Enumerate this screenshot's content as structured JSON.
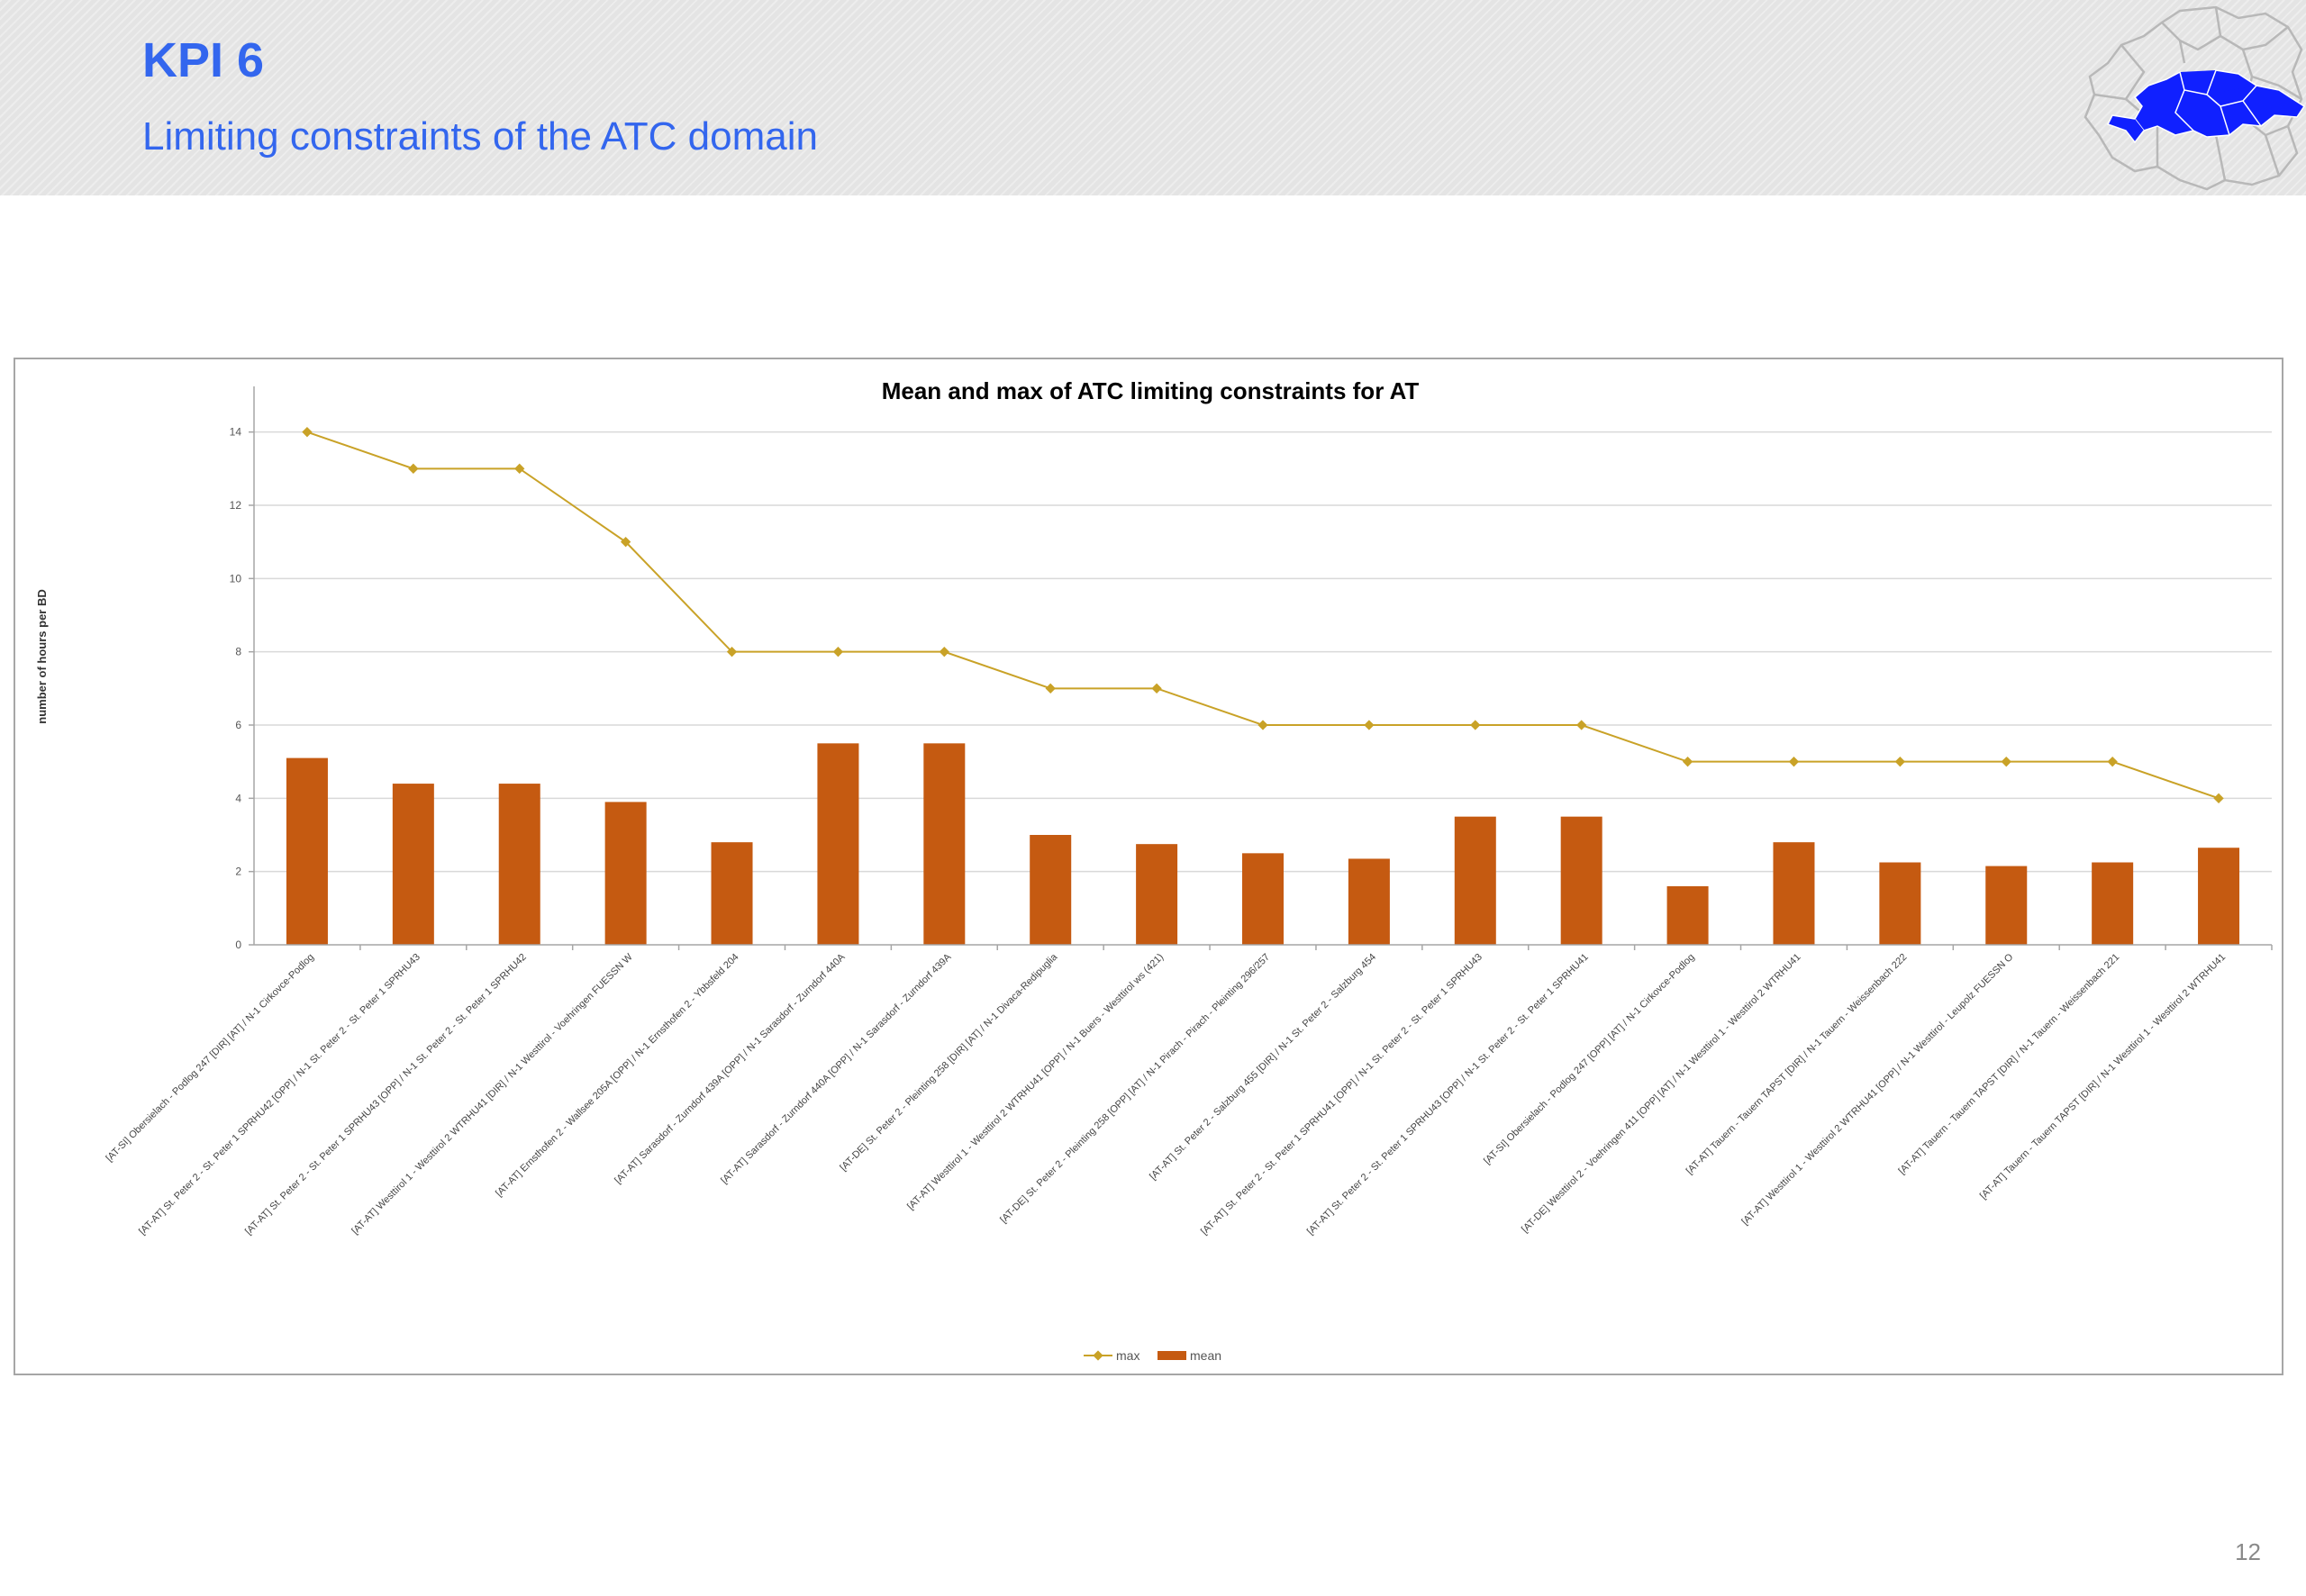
{
  "header": {
    "title": "KPI 6",
    "subtitle": "Limiting constraints of the ATC domain"
  },
  "page_number": "12",
  "colors": {
    "title": "#3366ee",
    "max_series": "#c9a227",
    "mean_series": "#c55a11",
    "grid": "#d9d9d9",
    "axis": "#a6a6a6"
  },
  "chart_data": {
    "type": "bar",
    "title": "Mean and max of ATC limiting constraints for AT",
    "ylabel": "number of hours per BD",
    "xlabel": "",
    "ylim": [
      0,
      15
    ],
    "yticks": [
      0,
      2,
      4,
      6,
      8,
      10,
      12,
      14
    ],
    "grid": true,
    "legend_position": "bottom",
    "categories": [
      "[AT-SI] Obersielach - Podlog 247 [DIR] [AT] / N-1 Cirkovce-Podlog",
      "[AT-AT] St. Peter 2 - St. Peter 1 SPRHU42 [OPP] / N-1 St. Peter 2 - St. Peter 1 SPRHU43",
      "[AT-AT] St. Peter 2 - St. Peter 1 SPRHU43 [OPP] / N-1 St. Peter 2 - St. Peter 1 SPRHU42",
      "[AT-AT] Westtirol 1 - Westtirol 2 WTRHU41 [DIR] / N-1 Westtirol - Voehringen FUESSN W",
      "[AT-AT] Ernsthofen 2 - Wallsee 205A [OPP] / N-1 Ernsthofen 2 - Ybbsfeld 204",
      "[AT-AT] Sarasdorf - Zurndorf 439A [OPP] / N-1 Sarasdorf - Zurndorf 440A",
      "[AT-AT] Sarasdorf - Zurndorf 440A [OPP] / N-1 Sarasdorf - Zurndorf 439A",
      "[AT-DE] St. Peter 2 - Pleinting 258 [DIR] [AT] / N-1 Divaca-Redipuglia",
      "[AT-AT] Westtirol 1 - Westtirol 2 WTRHU41 [OPP] / N-1 Buers - Westtirol ws (421)",
      "[AT-DE] St. Peter 2 - Pleinting 258 [OPP] [AT] / N-1 Pirach - Pirach - Pleinting 296/257",
      "[AT-AT] St. Peter 2 - Salzburg 455 [DIR] / N-1 St. Peter 2 - Salzburg 454",
      "[AT-AT] St. Peter 2 - St. Peter 1 SPRHU41 [OPP] / N-1 St. Peter 2 - St. Peter 1 SPRHU43",
      "[AT-AT] St. Peter 2 - St. Peter 1 SPRHU43 [OPP] / N-1 St. Peter 2 - St. Peter 1 SPRHU41",
      "[AT-SI] Obersielach - Podlog 247 [OPP] [AT] / N-1 Cirkovce-Podlog",
      "[AT-DE] Westtirol 2 - Voehringen 411 [OPP] [AT] / N-1 Westtirol 1 - Westtirol 2 WTRHU41",
      "[AT-AT] Tauern - Tauern TAPST [DIR] / N-1 Tauern - Weissenbach 222",
      "[AT-AT] Westtirol 1 - Westtirol 2 WTRHU41 [OPP] / N-1 Westtirol - Leupolz FUESSN O",
      "[AT-AT] Tauern - Tauern TAPST [DIR] / N-1 Tauern - Weissenbach 221",
      "[AT-AT] Tauern - Tauern TAPST [DIR] / N-1 Westtirol 1 - Westtirol 2 WTRHU41"
    ],
    "series": [
      {
        "name": "max",
        "type": "line",
        "values": [
          14,
          13,
          13,
          11,
          8,
          8,
          8,
          7,
          7,
          6,
          6,
          6,
          6,
          5,
          5,
          5,
          5,
          5,
          4
        ]
      },
      {
        "name": "mean",
        "type": "bar",
        "values": [
          5.1,
          4.4,
          4.4,
          3.9,
          2.8,
          5.5,
          5.5,
          3.0,
          2.75,
          2.5,
          2.35,
          3.5,
          3.5,
          1.6,
          2.8,
          2.25,
          2.15,
          2.25,
          2.65
        ]
      }
    ]
  }
}
